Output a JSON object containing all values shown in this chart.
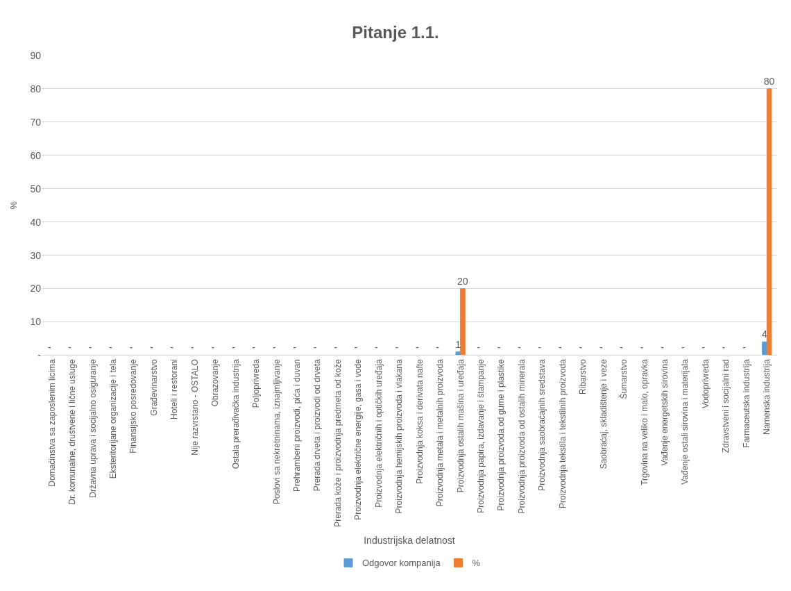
{
  "chart_data": {
    "type": "bar",
    "title": "Pitanje 1.1.",
    "xlabel": "Industrijska delatnost",
    "ylabel": "%",
    "categories": [
      "Domaćinstva sa zaposlenim licima",
      "Dr. komunalne, društvene i lične usluge",
      "Državna uprava i socijalno osiguranje",
      "Eksteritorijane organizacije i tela",
      "Finansijsko posredovanje",
      "Građevinarstvo",
      "Hoteli i restorani",
      "Nije razvrstano - OSTALO",
      "Obrazovanje",
      "Ostala prerađivačka industrija",
      "Poljoprivreda",
      "Poslovi sa nekretninama, iznajmljivanje",
      "Prehrambeni proizvodi, pića i duvan",
      "Prerada drveta i proizvodi od drveta",
      "Prerada kože i proizvodnja predmeta od kože",
      "Proizvodnja električne energije, gasa i vode",
      "Proizvodnja električnih i optičkih uređaja",
      "Proizvodnja hemijskih proizvoda i vlakana",
      "Proizvodnja koksa i derivata nafte",
      "Proizvodnja metala i metalnih proizvoda",
      "Proizvodnja ostalih mašina i uređaja",
      "Proizvodnja papira, izdavanje i štampanje",
      "Proizvodnja proizvoda od gume i plastike",
      "Proizvodnja proizvoda od ostalih minerala",
      "Proizvodnja saobraćajnih sredstava",
      "Proizvodnja tekstila i tekstilnih proizvoda",
      "Ribarstvo",
      "Saobraćaj, skladištenje i veze",
      "Šumarstvo",
      "Trgovina na veliko i malo, opravka",
      "Vađenje energetskih sirovina",
      "Vađenje ostali sirovina i materijala",
      "Vodoprivreda",
      "Zdravstveni i socijalni rad",
      "Farmaceutska industrija",
      "Namenska industrija"
    ],
    "series": [
      {
        "name": "Odgovor kompanija",
        "color": "#5b9bd5",
        "values": [
          0,
          0,
          0,
          0,
          0,
          0,
          0,
          0,
          0,
          0,
          0,
          0,
          0,
          0,
          0,
          0,
          0,
          0,
          0,
          0,
          1,
          0,
          0,
          0,
          0,
          0,
          0,
          0,
          0,
          0,
          0,
          0,
          0,
          0,
          0,
          4
        ],
        "value_labels": [
          "-",
          "-",
          "-",
          "-",
          "-",
          "-",
          "-",
          "-",
          "-",
          "-",
          "-",
          "-",
          "-",
          "-",
          "-",
          "-",
          "-",
          "-",
          "-",
          "-",
          "1",
          "-",
          "-",
          "-",
          "-",
          "-",
          "-",
          "-",
          "-",
          "-",
          "-",
          "-",
          "-",
          "-",
          "-",
          "4"
        ]
      },
      {
        "name": "%",
        "color": "#ed7d31",
        "values": [
          0,
          0,
          0,
          0,
          0,
          0,
          0,
          0,
          0,
          0,
          0,
          0,
          0,
          0,
          0,
          0,
          0,
          0,
          0,
          0,
          20,
          0,
          0,
          0,
          0,
          0,
          0,
          0,
          0,
          0,
          0,
          0,
          0,
          0,
          0,
          80
        ],
        "value_labels": [
          null,
          null,
          null,
          null,
          null,
          null,
          null,
          null,
          null,
          null,
          null,
          null,
          null,
          null,
          null,
          null,
          null,
          null,
          null,
          null,
          "20",
          null,
          null,
          null,
          null,
          null,
          null,
          null,
          null,
          null,
          null,
          null,
          null,
          null,
          null,
          "80"
        ]
      }
    ],
    "ylim": [
      0,
      90
    ],
    "yticks": [
      {
        "value": 0,
        "label": "-"
      },
      10,
      20,
      30,
      40,
      50,
      60,
      70,
      80,
      90
    ],
    "grid": "y",
    "legend": "bottom"
  }
}
